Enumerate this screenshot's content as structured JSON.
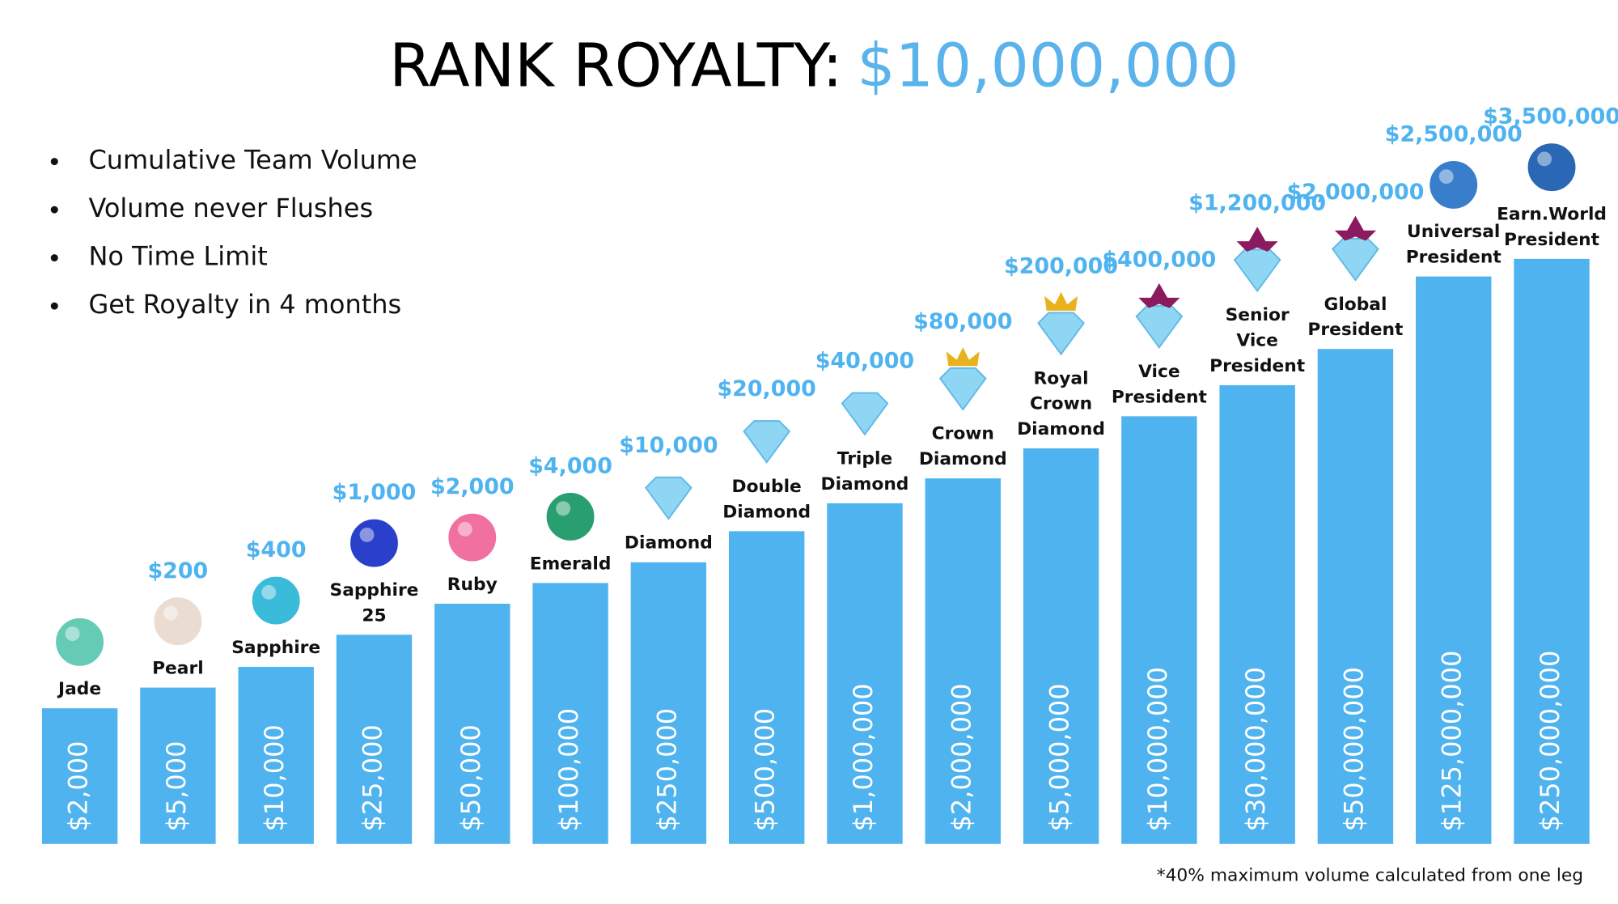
{
  "title": {
    "main": "RANK ROYALTY:",
    "amount": "$10,000,000"
  },
  "bullets": [
    "Cumulative Team Volume",
    "Volume never Flushes",
    "No Time Limit",
    "Get Royalty in 4 months"
  ],
  "ranks": [
    {
      "name": [
        "Jade"
      ],
      "royalty": null,
      "volume": "$2,000"
    },
    {
      "name": [
        "Pearl"
      ],
      "royalty": "$200",
      "volume": "$5,000"
    },
    {
      "name": [
        "Sapphire"
      ],
      "royalty": "$400",
      "volume": "$10,000"
    },
    {
      "name": [
        "Sapphire",
        "25"
      ],
      "royalty": "$1,000",
      "volume": "$25,000"
    },
    {
      "name": [
        "Ruby"
      ],
      "royalty": "$2,000",
      "volume": "$50,000"
    },
    {
      "name": [
        "Emerald"
      ],
      "royalty": "$4,000",
      "volume": "$100,000"
    },
    {
      "name": [
        "Diamond"
      ],
      "royalty": "$10,000",
      "volume": "$250,000"
    },
    {
      "name": [
        "Double",
        "Diamond"
      ],
      "royalty": "$20,000",
      "volume": "$500,000"
    },
    {
      "name": [
        "Triple",
        "Diamond"
      ],
      "royalty": "$40,000",
      "volume": "$1,000,000"
    },
    {
      "name": [
        "Crown",
        "Diamond"
      ],
      "royalty": "$80,000",
      "volume": "$2,000,000"
    },
    {
      "name": [
        "Royal",
        "Crown",
        "Diamond"
      ],
      "royalty": "$200,000",
      "volume": "$5,000,000"
    },
    {
      "name": [
        "Vice",
        "President"
      ],
      "royalty": "$400,000",
      "volume": "$10,000,000"
    },
    {
      "name": [
        "Senior",
        "Vice",
        "President"
      ],
      "royalty": "$1,200,000",
      "volume": "$30,000,000"
    },
    {
      "name": [
        "Global",
        "President"
      ],
      "royalty": "$2,000,000",
      "volume": "$50,000,000"
    },
    {
      "name": [
        "Universal",
        "President"
      ],
      "royalty": "$2,500,000",
      "volume": "$125,000,000"
    },
    {
      "name": [
        "Earn.World",
        "President"
      ],
      "royalty": "$3,500,000",
      "volume": "$250,000,000"
    }
  ],
  "footnote": "*40% maximum volume calculated from one leg"
}
